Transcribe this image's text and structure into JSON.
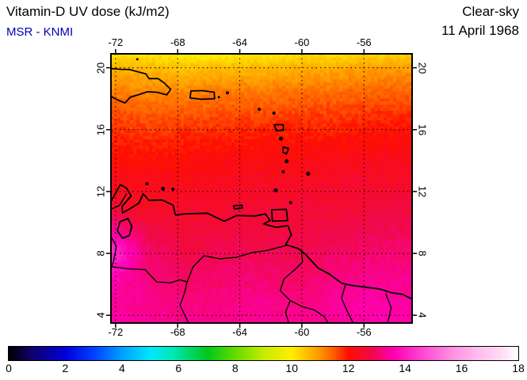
{
  "header": {
    "title": "Vitamin-D UV dose (kJ/m2)",
    "source": "MSR - KNMI",
    "condition": "Clear-sky",
    "date": "11 April 1968"
  },
  "colors": {
    "source_text": "#0000b4",
    "text": "#000000",
    "background": "#ffffff",
    "map_border": "#000000"
  },
  "chart_data": {
    "type": "heatmap",
    "title": "Vitamin-D UV dose (kJ/m2)",
    "units": "kJ/m2",
    "condition": "Clear-sky",
    "date": "11 April 1968",
    "projection": "lon-lat",
    "lon_range": [
      -72.3,
      -52.9
    ],
    "lat_range": [
      3.5,
      20.9
    ],
    "lon_ticks": [
      -72,
      -68,
      -64,
      -60,
      -56
    ],
    "lat_ticks": [
      4,
      8,
      12,
      16,
      20
    ],
    "grid_style": "dashed",
    "grid": {
      "lons": [
        -72.5,
        -70,
        -67.5,
        -65,
        -62.5,
        -60,
        -57.5,
        -55,
        -52.5
      ],
      "lats": [
        21,
        20,
        18.5,
        17,
        15.5,
        14,
        12.5,
        11,
        9.5,
        8,
        6.5,
        5,
        3.5
      ],
      "values": [
        [
          10.0,
          10.0,
          9.9,
          9.9,
          10.0,
          10.1,
          10.1,
          10.2,
          10.3
        ],
        [
          10.7,
          10.6,
          10.5,
          10.6,
          10.6,
          10.7,
          10.8,
          10.9,
          10.9
        ],
        [
          11.2,
          11.1,
          11.1,
          11.2,
          11.2,
          11.3,
          11.3,
          11.4,
          11.4
        ],
        [
          11.6,
          11.5,
          11.5,
          11.6,
          11.6,
          11.7,
          11.7,
          11.8,
          11.8
        ],
        [
          11.9,
          11.8,
          11.9,
          11.9,
          12.0,
          12.0,
          12.0,
          12.1,
          12.1
        ],
        [
          12.1,
          12.1,
          12.1,
          12.2,
          12.2,
          12.2,
          12.3,
          12.3,
          12.3
        ],
        [
          12.3,
          12.3,
          12.3,
          12.4,
          12.4,
          12.4,
          12.5,
          12.5,
          12.5
        ],
        [
          12.5,
          12.4,
          12.5,
          12.5,
          12.6,
          12.6,
          12.6,
          12.7,
          12.7
        ],
        [
          13.5,
          12.8,
          12.6,
          12.7,
          12.7,
          12.7,
          12.8,
          12.9,
          12.9
        ],
        [
          14.5,
          13.1,
          12.8,
          12.9,
          12.9,
          12.9,
          13.0,
          13.1,
          13.1
        ],
        [
          13.7,
          13.2,
          13.0,
          13.1,
          13.1,
          13.0,
          13.2,
          13.3,
          13.3
        ],
        [
          13.4,
          13.3,
          13.2,
          13.2,
          13.3,
          13.2,
          13.4,
          13.5,
          13.4
        ],
        [
          13.5,
          13.4,
          13.3,
          13.3,
          13.4,
          13.3,
          13.5,
          13.6,
          13.5
        ]
      ]
    },
    "colorbar": {
      "min": 0,
      "max": 18,
      "ticks": [
        0,
        2,
        4,
        6,
        8,
        10,
        12,
        14,
        16,
        18
      ],
      "stops": [
        {
          "v": 0,
          "c": "#000000"
        },
        {
          "v": 0.8,
          "c": "#10006e"
        },
        {
          "v": 2,
          "c": "#0000dc"
        },
        {
          "v": 3,
          "c": "#0041ff"
        },
        {
          "v": 4,
          "c": "#00a0ff"
        },
        {
          "v": 5,
          "c": "#00e8ff"
        },
        {
          "v": 5.8,
          "c": "#00e8b4"
        },
        {
          "v": 7,
          "c": "#00c81e"
        },
        {
          "v": 8,
          "c": "#64dc00"
        },
        {
          "v": 9,
          "c": "#c8eb00"
        },
        {
          "v": 10,
          "c": "#ffef00"
        },
        {
          "v": 10.9,
          "c": "#ffa000"
        },
        {
          "v": 11.5,
          "c": "#ff5a00"
        },
        {
          "v": 12,
          "c": "#ff0f00"
        },
        {
          "v": 12.8,
          "c": "#f00a46"
        },
        {
          "v": 13.6,
          "c": "#ff00b4"
        },
        {
          "v": 14.6,
          "c": "#ff46d2"
        },
        {
          "v": 15.6,
          "c": "#ff8ce1"
        },
        {
          "v": 16.6,
          "c": "#ffbeee"
        },
        {
          "v": 17.4,
          "c": "#ffdcf5"
        },
        {
          "v": 18,
          "c": "#ffffff"
        }
      ]
    },
    "features": [
      {
        "name": "hispaniola-coastline",
        "kind": "coast",
        "closed": false,
        "points": [
          [
            -72.3,
            19.95
          ],
          [
            -71.7,
            19.9
          ],
          [
            -71.1,
            19.88
          ],
          [
            -70.6,
            19.75
          ],
          [
            -70.05,
            19.6
          ],
          [
            -69.85,
            19.3
          ],
          [
            -69.25,
            19.3
          ],
          [
            -68.85,
            19.0
          ],
          [
            -68.45,
            18.6
          ],
          [
            -68.7,
            18.25
          ],
          [
            -69.35,
            18.42
          ],
          [
            -69.95,
            18.45
          ],
          [
            -70.55,
            18.25
          ],
          [
            -71.05,
            18.1
          ],
          [
            -71.4,
            17.72
          ],
          [
            -71.95,
            17.95
          ],
          [
            -72.3,
            18.15
          ]
        ]
      },
      {
        "name": "puerto-rico-coastline",
        "kind": "coast",
        "closed": true,
        "points": [
          [
            -67.15,
            18.5
          ],
          [
            -66.4,
            18.52
          ],
          [
            -65.65,
            18.42
          ],
          [
            -65.62,
            18.0
          ],
          [
            -66.5,
            17.96
          ],
          [
            -67.2,
            18.05
          ]
        ]
      },
      {
        "name": "trinidad-coastline",
        "kind": "coast",
        "closed": true,
        "points": [
          [
            -61.95,
            10.82
          ],
          [
            -61.0,
            10.85
          ],
          [
            -60.92,
            10.12
          ],
          [
            -61.9,
            10.08
          ]
        ]
      },
      {
        "name": "south-america-coastline",
        "kind": "coast",
        "closed": false,
        "points": [
          [
            -72.3,
            11.35
          ],
          [
            -72.0,
            11.9
          ],
          [
            -71.7,
            12.45
          ],
          [
            -71.3,
            12.22
          ],
          [
            -71.0,
            11.72
          ],
          [
            -71.58,
            11.05
          ],
          [
            -71.55,
            10.62
          ],
          [
            -71.05,
            10.9
          ],
          [
            -70.5,
            11.25
          ],
          [
            -70.22,
            11.85
          ],
          [
            -69.85,
            11.42
          ],
          [
            -69.0,
            11.45
          ],
          [
            -68.3,
            11.12
          ],
          [
            -68.15,
            10.48
          ],
          [
            -67.55,
            10.55
          ],
          [
            -66.1,
            10.6
          ],
          [
            -65.0,
            10.08
          ],
          [
            -64.2,
            10.45
          ],
          [
            -63.0,
            10.42
          ],
          [
            -62.35,
            10.55
          ],
          [
            -62.05,
            10.12
          ],
          [
            -62.45,
            9.9
          ],
          [
            -61.65,
            9.68
          ],
          [
            -60.9,
            9.8
          ],
          [
            -60.68,
            9.2
          ],
          [
            -61.05,
            8.55
          ],
          [
            -60.25,
            8.32
          ],
          [
            -59.78,
            7.95
          ],
          [
            -58.95,
            7.05
          ],
          [
            -58.25,
            6.68
          ],
          [
            -57.45,
            6.08
          ],
          [
            -56.75,
            5.92
          ],
          [
            -55.9,
            5.82
          ],
          [
            -55.0,
            5.7
          ],
          [
            -54.2,
            5.45
          ],
          [
            -53.5,
            5.35
          ],
          [
            -52.9,
            5.05
          ]
        ]
      },
      {
        "name": "lake-maracaibo-shoreline",
        "kind": "coast",
        "closed": true,
        "points": [
          [
            -71.72,
            10.05
          ],
          [
            -71.2,
            10.25
          ],
          [
            -70.95,
            9.75
          ],
          [
            -71.12,
            9.15
          ],
          [
            -71.55,
            8.98
          ],
          [
            -71.88,
            9.45
          ]
        ]
      },
      {
        "name": "guadeloupe-island",
        "kind": "coast",
        "closed": true,
        "points": [
          [
            -61.78,
            16.32
          ],
          [
            -61.2,
            16.32
          ],
          [
            -61.18,
            15.97
          ],
          [
            -61.65,
            15.92
          ]
        ]
      },
      {
        "name": "martinique-island",
        "kind": "coast",
        "closed": true,
        "points": [
          [
            -61.2,
            14.88
          ],
          [
            -60.85,
            14.78
          ],
          [
            -61.0,
            14.42
          ],
          [
            -61.22,
            14.55
          ]
        ]
      },
      {
        "name": "margarita-island",
        "kind": "coast",
        "closed": true,
        "points": [
          [
            -64.4,
            11.08
          ],
          [
            -63.85,
            11.12
          ],
          [
            -63.85,
            10.92
          ],
          [
            -64.35,
            10.88
          ]
        ]
      },
      {
        "name": "turks-island",
        "kind": "island",
        "r": 1.5,
        "points": [
          [
            -70.6,
            20.55
          ]
        ]
      },
      {
        "name": "virgin-islands",
        "kind": "island",
        "r": 2,
        "points": [
          [
            -64.8,
            18.38
          ]
        ]
      },
      {
        "name": "vieques-island",
        "kind": "island",
        "r": 1.5,
        "points": [
          [
            -65.35,
            18.1
          ]
        ]
      },
      {
        "name": "st-kitts-island",
        "kind": "island",
        "r": 2,
        "points": [
          [
            -62.75,
            17.32
          ]
        ]
      },
      {
        "name": "antigua-island",
        "kind": "island",
        "r": 2,
        "points": [
          [
            -61.8,
            17.07
          ]
        ]
      },
      {
        "name": "dominica-island",
        "kind": "island",
        "r": 2.5,
        "points": [
          [
            -61.35,
            15.42
          ]
        ]
      },
      {
        "name": "st-lucia-island",
        "kind": "island",
        "r": 2.5,
        "points": [
          [
            -60.98,
            13.95
          ]
        ]
      },
      {
        "name": "st-vincent-island",
        "kind": "island",
        "r": 2,
        "points": [
          [
            -61.2,
            13.28
          ]
        ]
      },
      {
        "name": "barbados-island",
        "kind": "island",
        "r": 2.5,
        "points": [
          [
            -59.6,
            13.15
          ]
        ]
      },
      {
        "name": "grenada-island",
        "kind": "island",
        "r": 2.5,
        "points": [
          [
            -61.68,
            12.08
          ]
        ]
      },
      {
        "name": "tobago-island",
        "kind": "island",
        "r": 2,
        "points": [
          [
            -60.72,
            11.28
          ]
        ]
      },
      {
        "name": "aruba-island",
        "kind": "island",
        "r": 2,
        "points": [
          [
            -69.98,
            12.5
          ]
        ]
      },
      {
        "name": "curacao-island",
        "kind": "island",
        "r": 2.5,
        "points": [
          [
            -68.95,
            12.18
          ]
        ]
      },
      {
        "name": "bonaire-island",
        "kind": "island",
        "r": 2,
        "points": [
          [
            -68.3,
            12.15
          ]
        ]
      },
      {
        "name": "colombia-venezuela-border-north",
        "kind": "border",
        "closed": false,
        "points": [
          [
            -71.3,
            11.85
          ],
          [
            -71.75,
            11.1
          ],
          [
            -72.3,
            10.85
          ]
        ]
      },
      {
        "name": "colombia-venezuela-border-west",
        "kind": "border",
        "closed": false,
        "points": [
          [
            -72.3,
            9.1
          ],
          [
            -71.95,
            8.45
          ],
          [
            -72.15,
            7.4
          ],
          [
            -72.3,
            7.1
          ]
        ]
      },
      {
        "name": "colombia-venezuela-border-south",
        "kind": "border",
        "closed": false,
        "points": [
          [
            -72.3,
            7.15
          ],
          [
            -71.15,
            7.0
          ],
          [
            -70.1,
            6.95
          ],
          [
            -69.35,
            6.15
          ],
          [
            -68.45,
            6.1
          ],
          [
            -67.85,
            6.3
          ],
          [
            -67.4,
            6.15
          ],
          [
            -67.55,
            5.45
          ],
          [
            -67.85,
            4.65
          ],
          [
            -67.3,
            3.5
          ]
        ]
      },
      {
        "name": "orinoco-river",
        "kind": "border",
        "closed": false,
        "points": [
          [
            -61.05,
            8.5
          ],
          [
            -62.2,
            8.2
          ],
          [
            -63.2,
            8.05
          ],
          [
            -64.2,
            7.75
          ],
          [
            -65.3,
            7.65
          ],
          [
            -66.3,
            7.85
          ],
          [
            -67.0,
            7.15
          ],
          [
            -67.4,
            6.15
          ]
        ]
      },
      {
        "name": "venezuela-guyana-border",
        "kind": "border",
        "closed": false,
        "points": [
          [
            -60.05,
            8.28
          ],
          [
            -59.95,
            7.45
          ],
          [
            -60.45,
            6.95
          ],
          [
            -61.15,
            6.35
          ],
          [
            -61.4,
            5.6
          ],
          [
            -60.75,
            4.95
          ],
          [
            -61.05,
            4.2
          ],
          [
            -60.85,
            3.5
          ]
        ]
      },
      {
        "name": "guyana-brazil-border",
        "kind": "border",
        "closed": false,
        "points": [
          [
            -60.75,
            4.95
          ],
          [
            -59.95,
            4.55
          ],
          [
            -59.2,
            4.35
          ],
          [
            -58.55,
            3.9
          ],
          [
            -58.3,
            3.5
          ]
        ]
      },
      {
        "name": "guyana-suriname-border",
        "kind": "border",
        "closed": false,
        "points": [
          [
            -57.2,
            5.95
          ],
          [
            -57.45,
            5.1
          ],
          [
            -57.05,
            4.2
          ],
          [
            -56.7,
            3.5
          ]
        ]
      },
      {
        "name": "suriname-french-guiana-border",
        "kind": "border",
        "closed": false,
        "points": [
          [
            -54.6,
            5.4
          ],
          [
            -54.25,
            4.5
          ],
          [
            -54.45,
            3.6
          ]
        ]
      }
    ]
  }
}
